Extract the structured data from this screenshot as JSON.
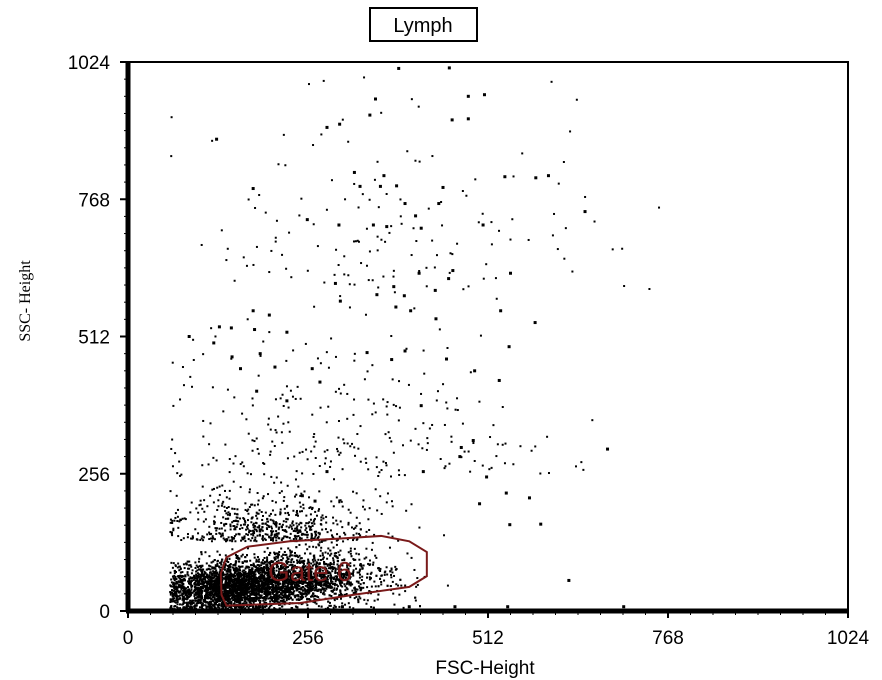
{
  "chart_data": {
    "type": "scatter",
    "title": "Lymph",
    "xlabel": "FSC-Height",
    "ylabel": "SSC- Height",
    "xlim": [
      0,
      1024
    ],
    "ylim": [
      0,
      1024
    ],
    "x_ticks": [
      "0",
      "256",
      "512",
      "768",
      "1024"
    ],
    "y_ticks": [
      "0",
      "256",
      "512",
      "768",
      "1024"
    ],
    "grid": false,
    "gate": {
      "label": "Gate 6",
      "color": "#7a1a1a",
      "polygon": [
        [
          140,
          10
        ],
        [
          245,
          15
        ],
        [
          320,
          30
        ],
        [
          400,
          45
        ],
        [
          425,
          65
        ],
        [
          425,
          110
        ],
        [
          400,
          130
        ],
        [
          360,
          140
        ],
        [
          300,
          135
        ],
        [
          230,
          130
        ],
        [
          170,
          120
        ],
        [
          140,
          100
        ],
        [
          132,
          70
        ],
        [
          133,
          30
        ]
      ]
    },
    "populations": [
      {
        "cx": 140,
        "cy": 40,
        "sx": 45,
        "sy": 22,
        "n": 2600
      },
      {
        "cx": 240,
        "cy": 60,
        "sx": 60,
        "sy": 25,
        "n": 2000
      },
      {
        "cx": 200,
        "cy": 130,
        "sx": 70,
        "sy": 55,
        "n": 600
      },
      {
        "cx": 300,
        "cy": 250,
        "sx": 140,
        "sy": 180,
        "n": 260
      },
      {
        "cx": 380,
        "cy": 600,
        "sx": 140,
        "sy": 220,
        "n": 140
      }
    ],
    "scattered_points": [
      [
        385,
        1012
      ],
      [
        457,
        1013
      ],
      [
        352,
        955
      ],
      [
        484,
        960
      ],
      [
        507,
        963
      ],
      [
        461,
        916
      ],
      [
        344,
        925
      ],
      [
        484,
        918
      ],
      [
        301,
        908
      ],
      [
        283,
        902
      ],
      [
        126,
        880
      ],
      [
        322,
        818
      ],
      [
        536,
        810
      ],
      [
        580,
        808
      ],
      [
        598,
        812
      ],
      [
        448,
        790
      ],
      [
        330,
        792
      ],
      [
        178,
        788
      ],
      [
        359,
        792
      ],
      [
        650,
        745
      ],
      [
        364,
        812
      ],
      [
        382,
        793
      ],
      [
        417,
        714
      ],
      [
        442,
        760
      ],
      [
        255,
        730
      ],
      [
        300,
        720
      ],
      [
        349,
        720
      ],
      [
        394,
        760
      ],
      [
        409,
        737
      ],
      [
        368,
        717
      ],
      [
        505,
        720
      ],
      [
        544,
        630
      ],
      [
        456,
        620
      ],
      [
        414,
        630
      ],
      [
        378,
        605
      ],
      [
        437,
        598
      ],
      [
        462,
        635
      ],
      [
        393,
        588
      ],
      [
        302,
        578
      ],
      [
        295,
        611
      ],
      [
        354,
        590
      ],
      [
        381,
        567
      ],
      [
        402,
        560
      ],
      [
        438,
        545
      ],
      [
        530,
        560
      ],
      [
        579,
        538
      ],
      [
        542,
        493
      ],
      [
        493,
        448
      ],
      [
        528,
        430
      ],
      [
        453,
        470
      ],
      [
        394,
        485
      ],
      [
        375,
        469
      ],
      [
        340,
        482
      ],
      [
        273,
        427
      ],
      [
        209,
        455
      ],
      [
        262,
        452
      ],
      [
        188,
        480
      ],
      [
        160,
        452
      ],
      [
        147,
        528
      ],
      [
        180,
        525
      ],
      [
        226,
        520
      ],
      [
        201,
        552
      ],
      [
        178,
        560
      ],
      [
        130,
        530
      ],
      [
        183,
        410
      ],
      [
        226,
        392
      ],
      [
        122,
        500
      ],
      [
        87,
        512
      ],
      [
        148,
        474
      ],
      [
        682,
        302
      ],
      [
        474,
        305
      ],
      [
        491,
        318
      ],
      [
        538,
        220
      ],
      [
        571,
        211
      ],
      [
        543,
        161
      ],
      [
        587,
        162
      ],
      [
        627,
        57
      ],
      [
        705,
        8
      ],
      [
        540,
        8
      ],
      [
        465,
        8
      ],
      [
        400,
        8
      ],
      [
        305,
        8
      ],
      [
        283,
        260
      ],
      [
        266,
        205
      ],
      [
        248,
        215
      ],
      [
        417,
        383
      ],
      [
        472,
        288
      ],
      [
        420,
        260
      ],
      [
        510,
        250
      ],
      [
        500,
        200
      ]
    ]
  }
}
